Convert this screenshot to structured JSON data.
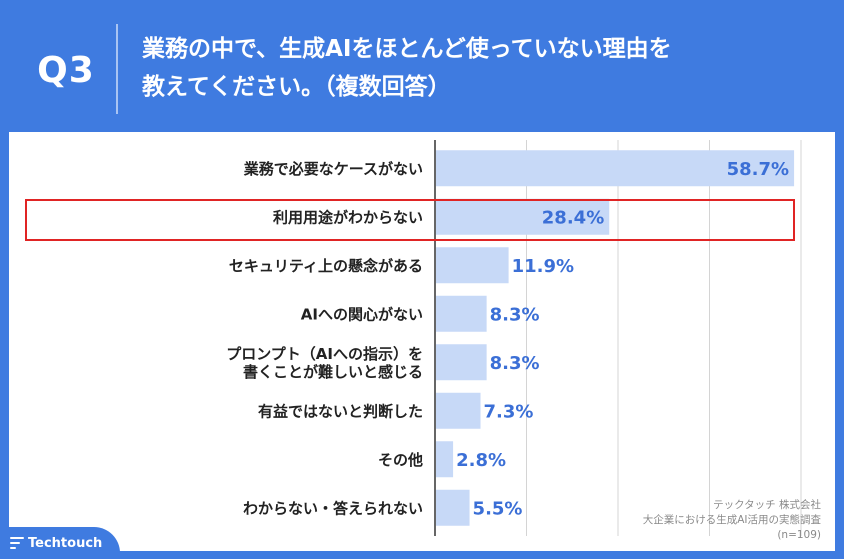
{
  "header": {
    "q_label": "Q3",
    "title_line1": "業務の中で、生成AIをほとんど使っていない理由を",
    "title_line2": "教えてください。（複数回答）"
  },
  "chart_data": {
    "type": "bar",
    "orientation": "horizontal",
    "categories": [
      [
        "業務で必要なケースがない"
      ],
      [
        "利用用途がわからない"
      ],
      [
        "セキュリティ上の懸念がある"
      ],
      [
        "AIへの関心がない"
      ],
      [
        "プロンプト（AIへの指示）を",
        "書くことが難しいと感じる"
      ],
      [
        "有益ではないと判断した"
      ],
      [
        "その他"
      ],
      [
        "わからない・答えられない"
      ]
    ],
    "values": [
      58.7,
      28.4,
      11.9,
      8.3,
      8.3,
      7.3,
      2.8,
      5.5
    ],
    "value_labels": [
      "58.7%",
      "28.4%",
      "11.9%",
      "8.3%",
      "8.3%",
      "7.3%",
      "2.8%",
      "5.5%"
    ],
    "xlim": [
      0,
      60
    ],
    "grid": true,
    "highlighted_category": "利用用途がわからない",
    "colors": {
      "bar": "#c7d9f7",
      "value_text": "#3b6fd6",
      "highlight": "#e02424"
    }
  },
  "source": {
    "company": "テックタッチ 株式会社",
    "survey": "大企業における生成AI活用の実態調査",
    "sample": "(n=109)"
  },
  "logo": {
    "text": "Techtouch"
  }
}
